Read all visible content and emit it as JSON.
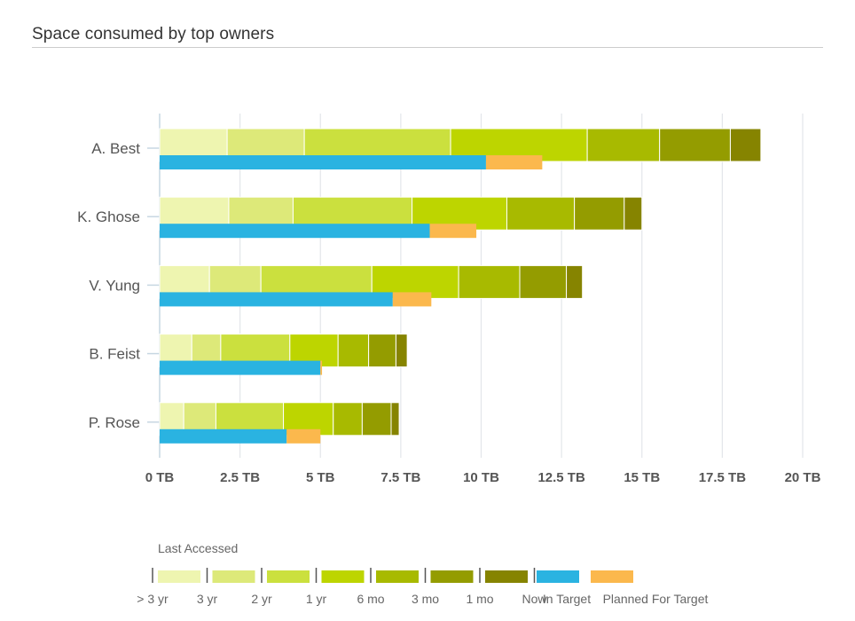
{
  "title": "Space consumed by top owners",
  "chart_data": {
    "type": "bar",
    "orientation": "horizontal",
    "stacked": true,
    "unit": "TB",
    "x_ticks": [
      "0 TB",
      "2.5 TB",
      "5 TB",
      "7.5 TB",
      "10 TB",
      "12.5 TB",
      "15 TB",
      "17.5 TB",
      "20 TB"
    ],
    "xlim": [
      0,
      20
    ],
    "grid": true,
    "categories": [
      "A. Best",
      "K. Ghose",
      "V. Yung",
      "B. Feist",
      "P. Rose"
    ],
    "access_series": [
      {
        "name": "> 3 yr",
        "color": "#eef5b0",
        "values": [
          2.1,
          2.15,
          1.55,
          1.0,
          0.75
        ]
      },
      {
        "name": "3 yr",
        "color": "#dde979",
        "values": [
          2.4,
          2.0,
          1.6,
          0.9,
          1.0
        ]
      },
      {
        "name": "2 yr",
        "color": "#cbe03e",
        "values": [
          4.55,
          3.7,
          3.45,
          2.15,
          2.1
        ]
      },
      {
        "name": "1 yr",
        "color": "#bdd500",
        "values": [
          4.25,
          2.95,
          2.7,
          1.5,
          1.55
        ]
      },
      {
        "name": "6 mo",
        "color": "#a8ba00",
        "values": [
          2.25,
          2.1,
          1.9,
          0.95,
          0.9
        ]
      },
      {
        "name": "3 mo",
        "color": "#949c00",
        "values": [
          2.2,
          1.55,
          1.45,
          0.85,
          0.9
        ]
      },
      {
        "name": "1 mo",
        "color": "#868400",
        "values": [
          0.95,
          0.55,
          0.5,
          0.35,
          0.25
        ]
      }
    ],
    "target_series": [
      {
        "name": "In Target",
        "color": "#2ab3e1",
        "values": [
          10.15,
          8.4,
          7.25,
          5.0,
          3.95
        ]
      },
      {
        "name": "Planned For Target",
        "color": "#fbb84d",
        "values": [
          1.75,
          1.45,
          1.2,
          0.05,
          1.05
        ]
      }
    ],
    "legend": {
      "title": "Last Accessed",
      "placement": "bottom-left",
      "entries": [
        {
          "label": "> 3 yr",
          "color": "#eef5b0"
        },
        {
          "label": "3 yr",
          "color": "#dde979"
        },
        {
          "label": "2 yr",
          "color": "#cbe03e"
        },
        {
          "label": "1 yr",
          "color": "#bdd500"
        },
        {
          "label": "6 mo",
          "color": "#a8ba00"
        },
        {
          "label": "3 mo",
          "color": "#949c00"
        },
        {
          "label": "1 mo",
          "color": "#868400"
        },
        {
          "label": "Now",
          "color": ""
        },
        {
          "label": "In Target",
          "color": "#2ab3e1"
        },
        {
          "label": "Planned For Target",
          "color": "#fbb84d"
        }
      ]
    }
  }
}
